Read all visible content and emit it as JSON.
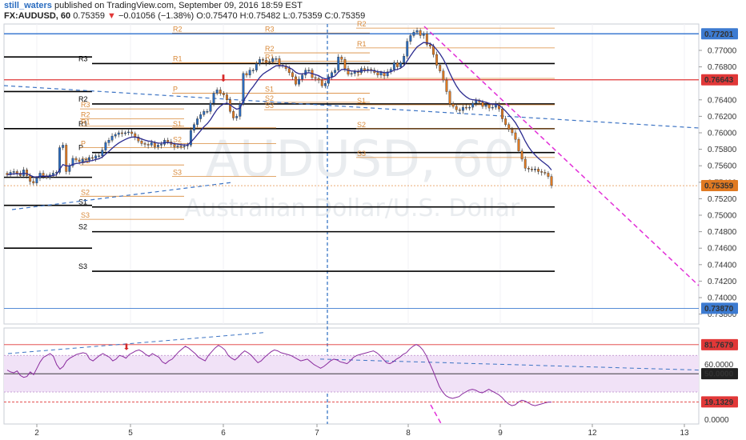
{
  "header": {
    "user": "still_waters",
    "published": " published on TradingView.com, September 09, 2016 18:59 EST",
    "symbol": "FX:AUDUSD, 60",
    "last": "0.75359",
    "change_arrow": "▼",
    "change": "−0.01056 (−1.38%)",
    "open_label": "O:",
    "open": "0.75470",
    "high_label": "H:",
    "high": "0.75482",
    "low_label": "L:",
    "low": "0.75359",
    "close_label": "C:",
    "close": "0.75359"
  },
  "watermark": {
    "symbol": "AUDUSD, 60",
    "description": "Australian Dollar/U.S. Dollar"
  },
  "colors": {
    "up": "#2a6cc0",
    "down": "#e07a22",
    "ma": "#2b2b8f",
    "pivot_major": "#000000",
    "pivot_minor": "#d98a3a",
    "trend": "#e230d8",
    "channel": "#3d74c4",
    "rsi": "#8a2b9e",
    "rsi_band": "#f1e2f7",
    "red_label": "#e13838",
    "blue_label": "#3d7bd1"
  },
  "chart_data": [
    {
      "type": "candlestick",
      "title": "FX:AUDUSD, 60",
      "x_ticks": [
        "2",
        "5",
        "6",
        "7",
        "8",
        "9",
        "12",
        "13"
      ],
      "ylim": [
        0.7368,
        0.7732
      ],
      "y_ticks": [
        "0.77000",
        "0.76800",
        "0.76400",
        "0.76200",
        "0.76000",
        "0.75800",
        "0.75600",
        "0.75400",
        "0.75200",
        "0.75000",
        "0.74800",
        "0.74600",
        "0.74400",
        "0.74200",
        "0.74000",
        "0.73800"
      ],
      "price_labels": [
        {
          "value": "0.77201",
          "style": "blue"
        },
        {
          "value": "0.76643",
          "style": "red"
        },
        {
          "value": "0.75359",
          "style": "orange"
        },
        {
          "value": "0.73870",
          "style": "blue"
        }
      ],
      "closes": [
        0.7549,
        0.7552,
        0.7553,
        0.7551,
        0.7548,
        0.7555,
        0.7548,
        0.7541,
        0.7539,
        0.7545,
        0.7551,
        0.7548,
        0.7546,
        0.7549,
        0.7551,
        0.7552,
        0.7582,
        0.7585,
        0.7553,
        0.756,
        0.7569,
        0.7567,
        0.7565,
        0.7568,
        0.7567,
        0.757,
        0.7569,
        0.7572,
        0.7572,
        0.7579,
        0.7588,
        0.7591,
        0.7596,
        0.7598,
        0.76,
        0.7599,
        0.76,
        0.7601,
        0.7599,
        0.7595,
        0.759,
        0.7587,
        0.7586,
        0.7585,
        0.7588,
        0.7583,
        0.7585,
        0.7586,
        0.7591,
        0.7589,
        0.7586,
        0.7583,
        0.7584,
        0.7583,
        0.7584,
        0.7585,
        0.7603,
        0.761,
        0.7617,
        0.7622,
        0.7626,
        0.7626,
        0.7636,
        0.7648,
        0.7652,
        0.7648,
        0.7646,
        0.764,
        0.7626,
        0.7618,
        0.762,
        0.7635,
        0.7672,
        0.767,
        0.7676,
        0.7676,
        0.7684,
        0.7689,
        0.7688,
        0.7685,
        0.7686,
        0.769,
        0.769,
        0.7682,
        0.7681,
        0.7678,
        0.7673,
        0.7668,
        0.7659,
        0.7665,
        0.767,
        0.7676,
        0.7676,
        0.7667,
        0.7666,
        0.7664,
        0.7657,
        0.766,
        0.7668,
        0.7673,
        0.7676,
        0.7692,
        0.7689,
        0.7678,
        0.7671,
        0.7672,
        0.7674,
        0.7673,
        0.7678,
        0.7676,
        0.7677,
        0.7676,
        0.7673,
        0.767,
        0.7673,
        0.7669,
        0.7674,
        0.7677,
        0.7685,
        0.768,
        0.7685,
        0.7693,
        0.7711,
        0.7718,
        0.7722,
        0.7724,
        0.7718,
        0.772,
        0.7707,
        0.7705,
        0.7695,
        0.7682,
        0.7675,
        0.7664,
        0.765,
        0.7635,
        0.7632,
        0.7628,
        0.7627,
        0.7631,
        0.763,
        0.7631,
        0.7636,
        0.7639,
        0.7637,
        0.7632,
        0.7634,
        0.763,
        0.7631,
        0.7635,
        0.7629,
        0.7617,
        0.761,
        0.7604,
        0.76,
        0.7592,
        0.7578,
        0.7568,
        0.7557,
        0.7556,
        0.7555,
        0.7556,
        0.7553,
        0.7552,
        0.7551,
        0.7547,
        0.7536
      ],
      "pivots_major": [
        {
          "label": "R3",
          "value": 0.7684
        },
        {
          "label": "R2",
          "value": 0.7635
        },
        {
          "label": "R1",
          "value": 0.7605
        },
        {
          "label": "P",
          "value": 0.7576
        },
        {
          "label": "S1",
          "value": 0.751
        },
        {
          "label": "S2",
          "value": 0.748
        },
        {
          "label": "S3",
          "value": 0.7432
        }
      ],
      "pivots_minor": [
        {
          "label": "R3",
          "value": 0.7629
        },
        {
          "label": "R2",
          "value": 0.7617
        },
        {
          "label": "R1",
          "value": 0.7608
        },
        {
          "label": "P",
          "value": 0.7582
        },
        {
          "label": "S1",
          "value": 0.7561
        },
        {
          "label": "S2",
          "value": 0.7523
        },
        {
          "label": "S3",
          "value": 0.7495
        },
        {
          "label": "R2",
          "value": 0.7721
        },
        {
          "label": "R1",
          "value": 0.7685
        },
        {
          "label": "P",
          "value": 0.7648
        },
        {
          "label": "S1",
          "value": 0.7606
        },
        {
          "label": "S2",
          "value": 0.7587
        },
        {
          "label": "S3",
          "value": 0.7547
        },
        {
          "label": "R3",
          "value": 0.7721
        },
        {
          "label": "R2",
          "value": 0.7697
        },
        {
          "label": "R1",
          "value": 0.7687
        },
        {
          "label": "S1",
          "value": 0.7648
        },
        {
          "label": "S2",
          "value": 0.7637
        },
        {
          "label": "S3",
          "value": 0.7628
        },
        {
          "label": "R2",
          "value": 0.7727
        },
        {
          "label": "R1",
          "value": 0.7703
        },
        {
          "label": "P",
          "value": 0.7666
        },
        {
          "label": "S1",
          "value": 0.7634
        },
        {
          "label": "S2",
          "value": 0.7605
        },
        {
          "label": "S3",
          "value": 0.757
        }
      ]
    },
    {
      "type": "line",
      "title": "RSI",
      "ylim": [
        -5,
        100
      ],
      "y_ticks": [
        "60.0000",
        "0.0000"
      ],
      "levels": [
        {
          "value": "81.7679",
          "style": "red"
        },
        {
          "value": "50.0000",
          "style": "dark"
        },
        {
          "value": "19.1329",
          "style": "red"
        }
      ],
      "values": [
        54,
        52,
        51,
        53,
        48,
        46,
        47,
        52,
        49,
        56,
        63,
        68,
        70,
        72,
        69,
        60,
        55,
        58,
        64,
        67,
        69,
        71,
        72,
        73,
        72,
        66,
        64,
        67,
        70,
        72,
        70,
        68,
        64,
        66,
        70,
        69,
        67,
        71,
        73,
        75,
        76,
        74,
        71,
        69,
        72,
        70,
        68,
        63,
        61,
        64,
        66,
        70,
        74,
        77,
        80,
        78,
        75,
        72,
        68,
        66,
        64,
        70,
        74,
        78,
        81,
        79,
        76,
        70,
        67,
        65,
        68,
        72,
        75,
        73,
        70,
        66,
        62,
        64,
        68,
        71,
        74,
        76,
        75,
        73,
        72,
        71,
        70,
        68,
        66,
        64,
        65,
        66,
        63,
        60,
        58,
        56,
        58,
        61,
        64,
        66,
        65,
        63,
        62,
        61,
        64,
        68,
        70,
        71,
        72,
        73,
        74,
        75,
        73,
        70,
        66,
        62,
        61,
        63,
        66,
        68,
        71,
        73,
        77,
        80,
        82,
        80,
        76,
        70,
        62,
        54,
        45,
        36,
        30,
        26,
        24,
        23,
        24,
        25,
        28,
        30,
        32,
        33,
        32,
        30,
        29,
        31,
        33,
        31,
        29,
        27,
        24,
        20,
        17,
        15,
        16,
        19,
        21,
        20,
        18,
        16,
        15,
        16,
        17,
        18,
        19,
        19
      ]
    }
  ]
}
